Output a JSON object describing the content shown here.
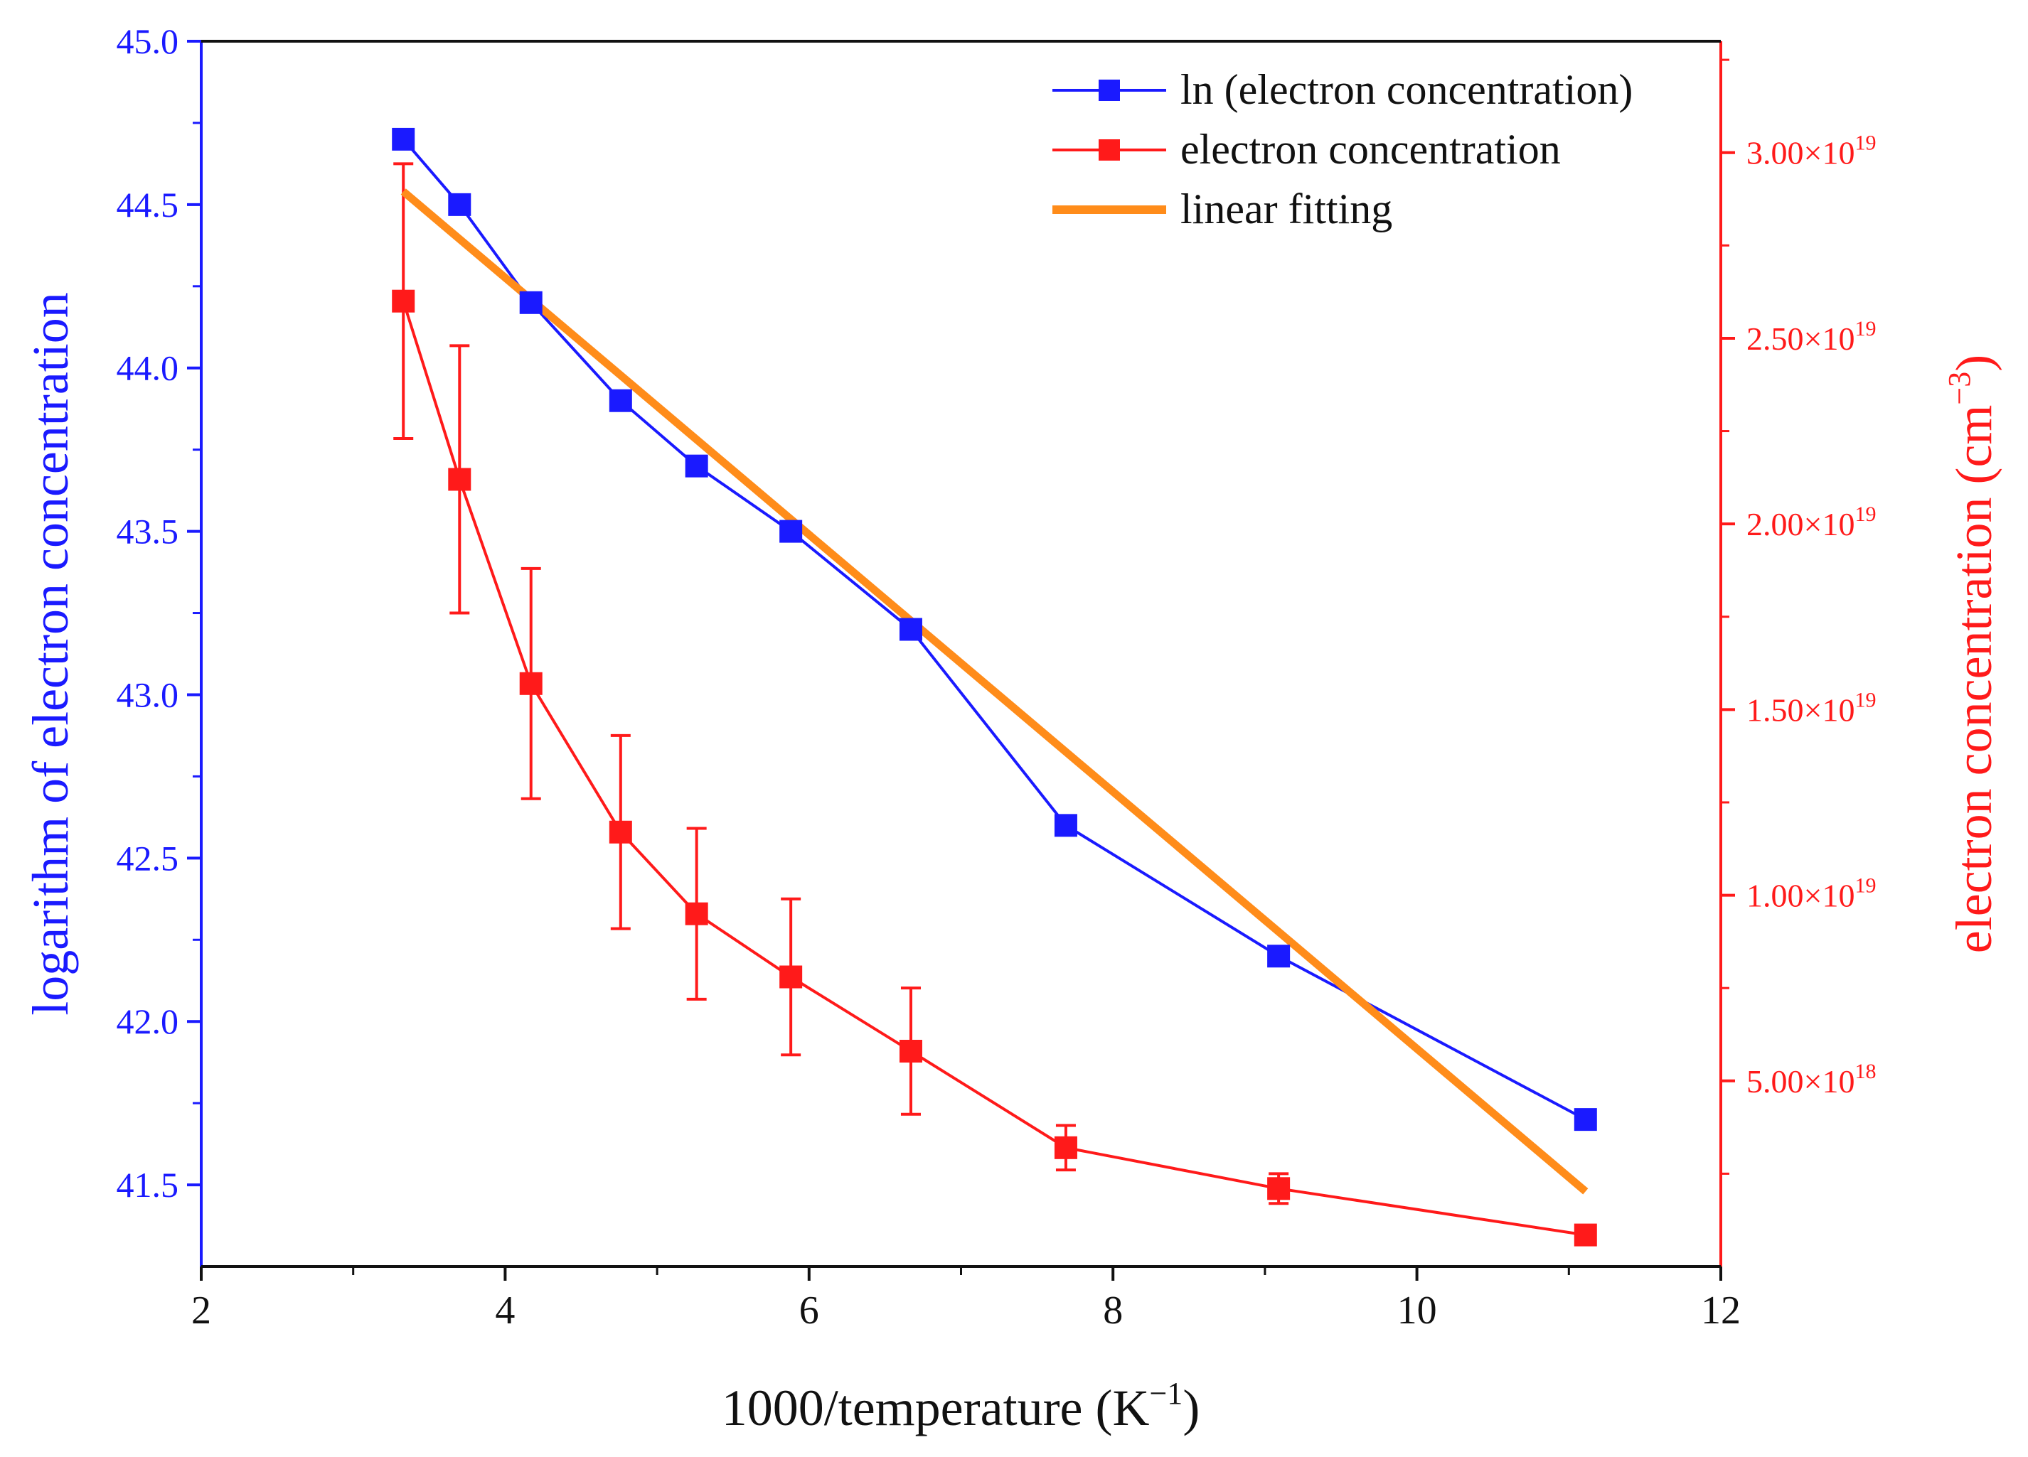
{
  "chart_data": {
    "type": "line",
    "xlabel_main": "1000/temperature (K",
    "xlabel_sup": "−1",
    "xlabel_close": ")",
    "ylabel_left": "logarithm of electron concentration",
    "ylabel_right_main": "electron concentration (cm",
    "ylabel_right_sup": "−3",
    "ylabel_right_close": ")",
    "xlim": [
      2,
      12
    ],
    "ylim_left": [
      41.25,
      45.0
    ],
    "ylim_right": [
      0,
      3.3e+19
    ],
    "x_ticks": [
      "2",
      "4",
      "6",
      "8",
      "10",
      "12"
    ],
    "y_left_ticks": [
      "41.5",
      "42.0",
      "42.5",
      "43.0",
      "43.5",
      "44.0",
      "44.5",
      "45.0"
    ],
    "y_right_ticks": [
      {
        "mantissa": "5.00",
        "exp": "18",
        "value": 5e+18
      },
      {
        "mantissa": "1.00",
        "exp": "19",
        "value": 1e+19
      },
      {
        "mantissa": "1.50",
        "exp": "19",
        "value": 1.5e+19
      },
      {
        "mantissa": "2.00",
        "exp": "19",
        "value": 2e+19
      },
      {
        "mantissa": "2.50",
        "exp": "19",
        "value": 2.5e+19
      },
      {
        "mantissa": "3.00",
        "exp": "19",
        "value": 3e+19
      }
    ],
    "times_symbol": "×10",
    "x": [
      3.33,
      3.7,
      4.17,
      4.76,
      5.26,
      5.88,
      6.67,
      7.69,
      9.09,
      11.11
    ],
    "series": [
      {
        "name": "ln (electron concentration)",
        "axis": "left",
        "color": "#1a1aff",
        "values": [
          44.7,
          44.5,
          44.2,
          43.9,
          43.7,
          43.5,
          43.2,
          42.6,
          42.2,
          41.7
        ]
      },
      {
        "name": "electron concentration",
        "axis": "right",
        "color": "#ff1a1a",
        "values": [
          2.6e+19,
          2.12e+19,
          1.57e+19,
          1.17e+19,
          9.5e+18,
          7.8e+18,
          5.8e+18,
          3.2e+18,
          2.1e+18,
          8.5e+17
        ],
        "errors": [
          3.7e+18,
          3.6e+18,
          3.1e+18,
          2.6e+18,
          2.3e+18,
          2.1e+18,
          1.7e+18,
          6e+17,
          4e+17,
          1.5e+17
        ]
      },
      {
        "name": "linear fitting",
        "axis": "left",
        "color": "#ff8c1a",
        "type": "fit",
        "x": [
          3.33,
          11.11
        ],
        "values": [
          44.54,
          41.48
        ]
      }
    ],
    "legend_position": "top-right"
  }
}
